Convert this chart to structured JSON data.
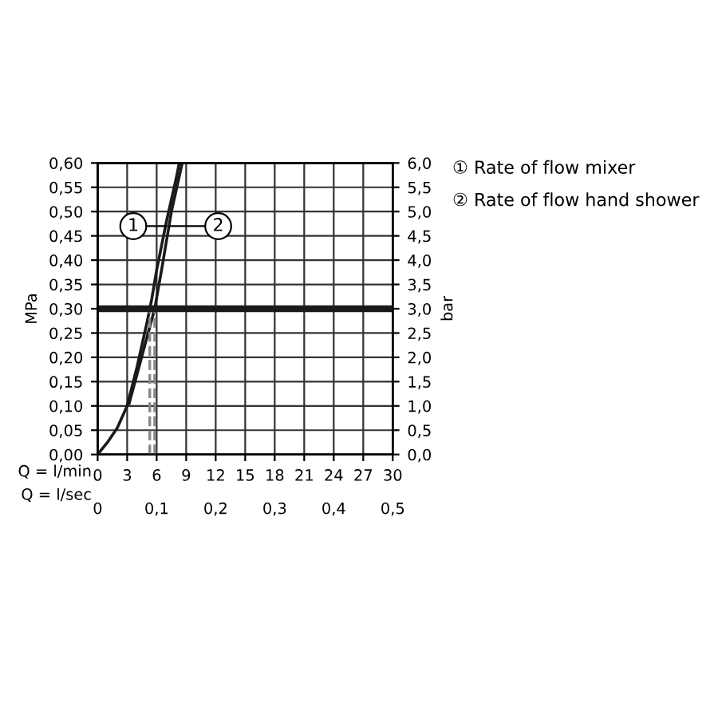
{
  "chart_data": {
    "type": "line",
    "ylabel": "MPa",
    "y2label": "bar",
    "xlabel": "Q = l/min",
    "x2label": "Q = l/sec",
    "xlim": [
      0,
      30
    ],
    "xticks": [
      0,
      3,
      6,
      9,
      12,
      15,
      18,
      21,
      24,
      27,
      30
    ],
    "x2lim": [
      0,
      0.5
    ],
    "x2ticks": [
      0,
      {
        "value": 0.1,
        "label": "0,1"
      },
      {
        "value": 0.2,
        "label": "0,2"
      },
      {
        "value": 0.3,
        "label": "0,3"
      },
      {
        "value": 0.4,
        "label": "0,4"
      },
      {
        "value": 0.5,
        "label": "0,5"
      }
    ],
    "ylim": [
      0,
      0.6
    ],
    "yticks": [
      {
        "value": 0,
        "label": "0,00"
      },
      {
        "value": 0.05,
        "label": "0,05"
      },
      {
        "value": 0.1,
        "label": "0,10"
      },
      {
        "value": 0.15,
        "label": "0,15"
      },
      {
        "value": 0.2,
        "label": "0,20"
      },
      {
        "value": 0.25,
        "label": "0,25"
      },
      {
        "value": 0.3,
        "label": "0,30"
      },
      {
        "value": 0.35,
        "label": "0,35"
      },
      {
        "value": 0.4,
        "label": "0,40"
      },
      {
        "value": 0.45,
        "label": "0,45"
      },
      {
        "value": 0.5,
        "label": "0,50"
      },
      {
        "value": 0.55,
        "label": "0,55"
      },
      {
        "value": 0.6,
        "label": "0,60"
      }
    ],
    "y2lim": [
      0,
      6
    ],
    "y2ticks": [
      {
        "value": 0,
        "label": "0,0"
      },
      {
        "value": 0.5,
        "label": "0,5"
      },
      {
        "value": 1,
        "label": "1,0"
      },
      {
        "value": 1.5,
        "label": "1,5"
      },
      {
        "value": 2,
        "label": "2,0"
      },
      {
        "value": 2.5,
        "label": "2,5"
      },
      {
        "value": 3,
        "label": "3,0"
      },
      {
        "value": 3.5,
        "label": "3,5"
      },
      {
        "value": 4,
        "label": "4,0"
      },
      {
        "value": 4.5,
        "label": "4,5"
      },
      {
        "value": 5,
        "label": "5,0"
      },
      {
        "value": 5.5,
        "label": "5,5"
      },
      {
        "value": 6,
        "label": "6,0"
      }
    ],
    "grid": true,
    "series": [
      {
        "color": "#1a1a1a",
        "x": [
          0,
          1,
          2,
          3,
          4,
          5,
          5.5,
          6,
          7,
          8,
          8.3
        ],
        "values": [
          0,
          0.025,
          0.055,
          0.1,
          0.18,
          0.27,
          0.32,
          0.38,
          0.48,
          0.57,
          0.6
        ]
      },
      {
        "color": "#1a1a1a",
        "x": [
          3.2,
          4,
          5,
          5.8,
          6.5,
          7.5,
          8.6
        ],
        "values": [
          0.105,
          0.165,
          0.24,
          0.3,
          0.38,
          0.5,
          0.6
        ]
      },
      {
        "color": "#888888",
        "line_style": "dashed",
        "x": [
          5.3,
          5.3
        ],
        "values": [
          0,
          0.3
        ]
      },
      {
        "color": "#888888",
        "line_style": "dashed",
        "x": [
          5.8,
          5.8
        ],
        "values": [
          0,
          0.3
        ]
      }
    ],
    "ref_lines": [
      {
        "axis": "y",
        "value": 0.3,
        "color": "#1a1a1a"
      }
    ],
    "annotations": [
      {
        "text": "1",
        "x": 7.0,
        "y": 0.47
      },
      {
        "text": "2",
        "x": 7.3,
        "y": 0.47
      },
      "① Rate of flow mixer",
      "② Rate of flow hand shower"
    ]
  }
}
